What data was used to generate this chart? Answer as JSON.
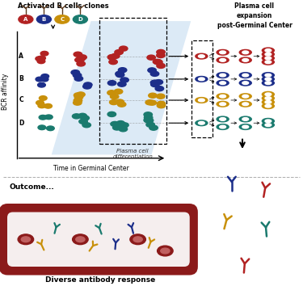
{
  "colors": {
    "red": "#B22222",
    "blue": "#1C2E8A",
    "gold": "#C8900A",
    "teal": "#1A7A6E",
    "light_blue_poly": "#C5DCF0",
    "blood_vessel_outer": "#8B1A1A",
    "blood_vessel_inner": "#F5EEEE",
    "gray_dash": "#888888"
  },
  "top_label": "Activated B cells clones",
  "right_label_line1": "Plasma cell",
  "right_label_line2": "expansion",
  "right_label_line3": "post-Germinal Center",
  "x_label": "Time in Germinal Center",
  "y_label": "BCR affinity",
  "plasma_diff_label": "Plasma cell\ndifferentiation",
  "outcome_label": "Outcome...",
  "diverse_label": "Diverse antibody response",
  "clone_letters": [
    "A",
    "B",
    "C",
    "D"
  ]
}
